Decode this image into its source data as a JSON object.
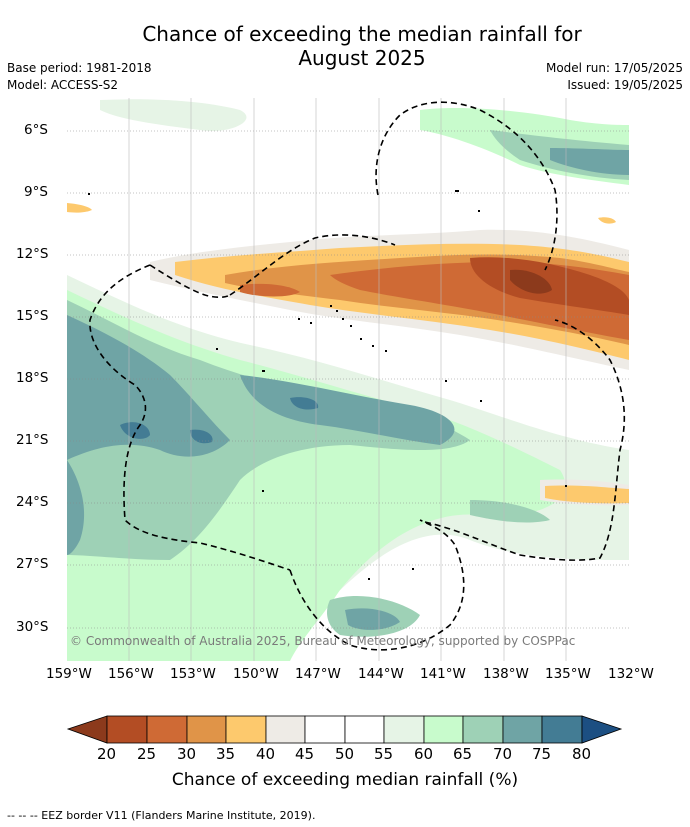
{
  "header": {
    "title_line1": "Chance of exceeding the median rainfall for",
    "title_line2": "August 2025",
    "base_period": "Base period: 1981-2018",
    "model": "Model: ACCESS-S2",
    "model_run": "Model run: 17/05/2025",
    "issued": "Issued: 19/05/2025"
  },
  "map": {
    "lat_labels": [
      "6°S",
      "9°S",
      "12°S",
      "15°S",
      "18°S",
      "21°S",
      "24°S",
      "27°S",
      "30°S"
    ],
    "lon_labels": [
      "159°W",
      "156°W",
      "153°W",
      "150°W",
      "147°W",
      "144°W",
      "141°W",
      "138°W",
      "135°W",
      "132°W"
    ],
    "copyright": "© Commonwealth of Australia 2025, Bureau of Meteorology, supported by COSPPac"
  },
  "colorbar": {
    "labels": [
      "20",
      "25",
      "30",
      "35",
      "40",
      "45",
      "50",
      "55",
      "60",
      "65",
      "70",
      "75",
      "80"
    ],
    "colors": [
      "#8c3a1c",
      "#b34d24",
      "#cf6a35",
      "#e09448",
      "#fdc96d",
      "#eeebe6",
      "#ffffff",
      "#ffffff",
      "#e6f4e6",
      "#c8fbcc",
      "#9ed1b6",
      "#6fa4a5",
      "#437c94",
      "#1c4f82"
    ],
    "title": "Chance of exceeding median rainfall (%)"
  },
  "footer": {
    "legend_line": "--  --  -- EEZ border V11 (Flanders Marine Institute, 2019)."
  }
}
